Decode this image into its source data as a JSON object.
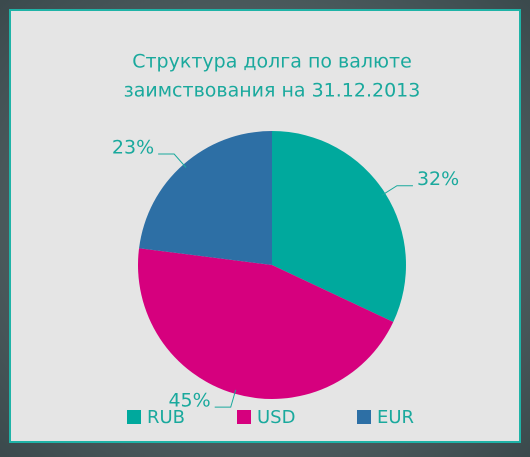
{
  "chart_data": {
    "type": "pie",
    "title": [
      "Структура долга по валюте",
      "заимствования на 31.12.2013"
    ],
    "categories": [
      "RUB",
      "USD",
      "EUR"
    ],
    "values": [
      32,
      45,
      23
    ],
    "value_labels": [
      "32%",
      "45%",
      "23%"
    ],
    "colors": [
      "#00a99d",
      "#d6007e",
      "#2d6fa5"
    ],
    "legend": "bottom"
  }
}
